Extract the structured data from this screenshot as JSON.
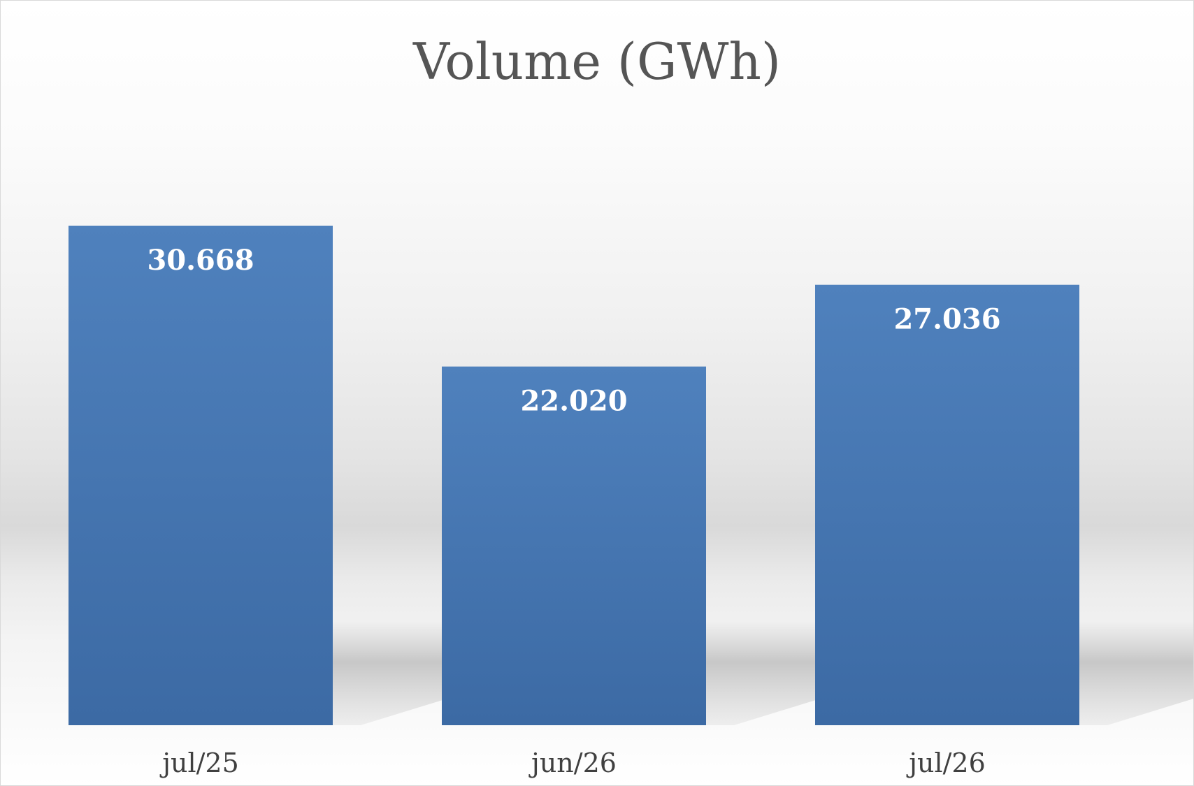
{
  "chart_data": {
    "type": "bar",
    "title": "Volume (GWh)",
    "categories": [
      "jul/25",
      "jun/26",
      "jul/26"
    ],
    "values": [
      30.668,
      22.02,
      27.036
    ],
    "value_labels": [
      "30.668",
      "22.020",
      "27.036"
    ],
    "xlabel": "",
    "ylabel": "",
    "ylim": [
      0,
      30.668
    ],
    "grid": false,
    "legend": "none",
    "bar_color": "#4a7ebb",
    "bar_color_dark": "#3d6ba3"
  }
}
